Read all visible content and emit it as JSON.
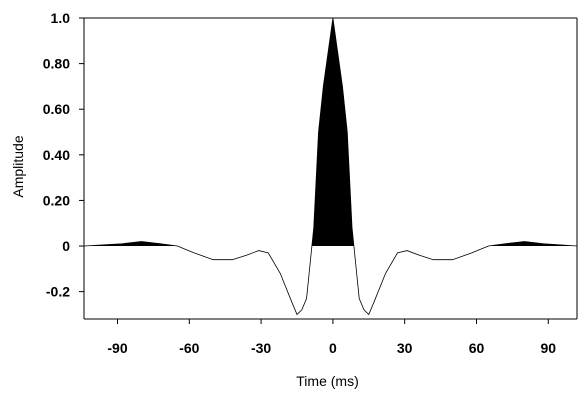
{
  "chart_data": {
    "type": "area",
    "title": "",
    "xlabel": "Time (ms)",
    "ylabel": "Amplitude",
    "xlim": [
      -104,
      102
    ],
    "ylim": [
      -0.32,
      1.0
    ],
    "x_ticks": [
      -90,
      -60,
      -30,
      0,
      30,
      60,
      90
    ],
    "x_tick_labels": [
      "-90",
      "-60",
      "-30",
      "0",
      "30",
      "60",
      "90"
    ],
    "y_ticks": [
      1.0,
      0.8,
      0.6,
      0.4,
      0.2,
      0,
      -0.2
    ],
    "y_tick_labels": [
      "1.0",
      "0.80",
      "0.60",
      "0.40",
      "0.20",
      "0",
      "-0.2"
    ],
    "grid": false,
    "legend": "none",
    "fill": "positive lobes filled black",
    "line_color": "#000000",
    "series": [
      {
        "x": [
          -104,
          -88,
          -80,
          -72,
          -65,
          -58,
          -50,
          -42,
          -36,
          -31,
          -27,
          -22,
          -17,
          -15,
          -13,
          -11,
          -8,
          -6,
          -4,
          -2,
          0,
          2,
          4,
          6,
          8,
          11,
          13,
          15,
          17,
          22,
          27,
          31,
          36,
          42,
          50,
          58,
          65,
          72,
          80,
          88,
          102
        ],
        "y": [
          0,
          0.01,
          0.02,
          0.01,
          0,
          -0.03,
          -0.06,
          -0.06,
          -0.04,
          -0.02,
          -0.03,
          -0.12,
          -0.25,
          -0.3,
          -0.28,
          -0.23,
          0.08,
          0.5,
          0.7,
          0.85,
          1.0,
          0.85,
          0.7,
          0.5,
          0.08,
          -0.23,
          -0.28,
          -0.3,
          -0.25,
          -0.12,
          -0.03,
          -0.02,
          -0.04,
          -0.06,
          -0.06,
          -0.03,
          0,
          0.01,
          0.02,
          0.01,
          0
        ]
      }
    ]
  }
}
